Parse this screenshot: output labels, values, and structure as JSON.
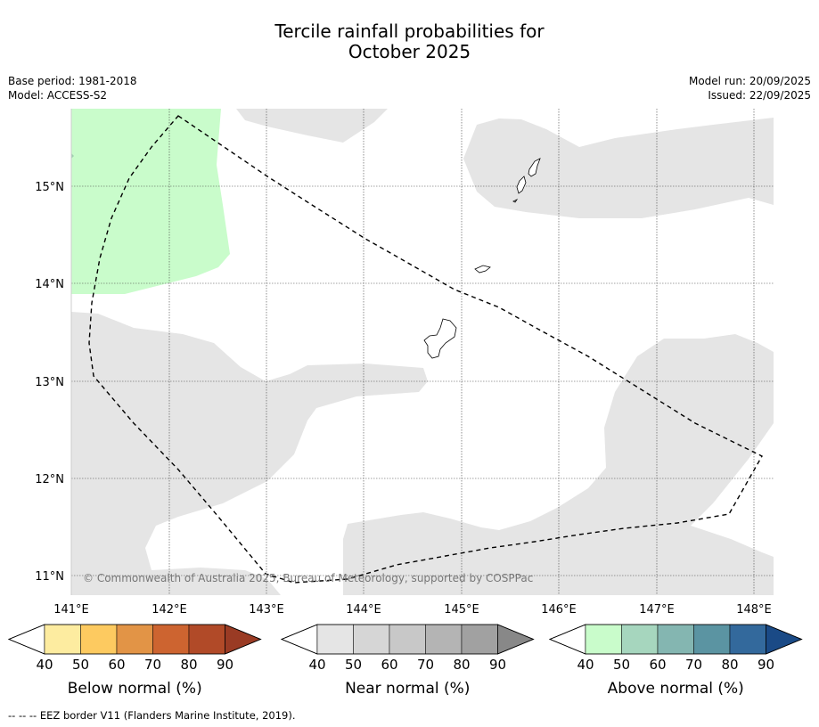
{
  "title_line1": "Tercile rainfall probabilities for",
  "title_line2": "October 2025",
  "base_period": "Base period: 1981-2018",
  "model": "Model: ACCESS-S2",
  "model_run": "Model run: 20/09/2025",
  "issued": "Issued: 22/09/2025",
  "lat_labels": [
    "15°N",
    "14°N",
    "13°N",
    "12°N",
    "11°N"
  ],
  "lon_labels": [
    "141°E",
    "142°E",
    "143°E",
    "144°E",
    "145°E",
    "146°E",
    "147°E",
    "148°E"
  ],
  "copyright": "© Commonwealth of Australia 2025, Bureau of Meteorology, supported by COSPPac",
  "colorbars": [
    {
      "label": "Below normal (%)",
      "ticks": [
        "40",
        "50",
        "60",
        "70",
        "80",
        "90"
      ],
      "colors": [
        "#ffffff",
        "#fdeca0",
        "#fdca60",
        "#e29446",
        "#cd6430",
        "#b14a28",
        "#9a3b24"
      ]
    },
    {
      "label": "Near normal (%)",
      "ticks": [
        "40",
        "50",
        "60",
        "70",
        "80",
        "90"
      ],
      "colors": [
        "#ffffff",
        "#e5e5e5",
        "#d6d6d6",
        "#c8c8c8",
        "#b4b4b4",
        "#a1a1a1",
        "#888888"
      ]
    },
    {
      "label": "Above normal (%)",
      "ticks": [
        "40",
        "50",
        "60",
        "70",
        "80",
        "90"
      ],
      "colors": [
        "#ffffff",
        "#c9fccb",
        "#a6d6be",
        "#84b6b1",
        "#5b94a2",
        "#33699c",
        "#1a4a86"
      ]
    }
  ],
  "legend_note": "EEZ border V11 (Flanders Marine Institute, 2019).",
  "legend_note_symbol": "--  --  --"
}
